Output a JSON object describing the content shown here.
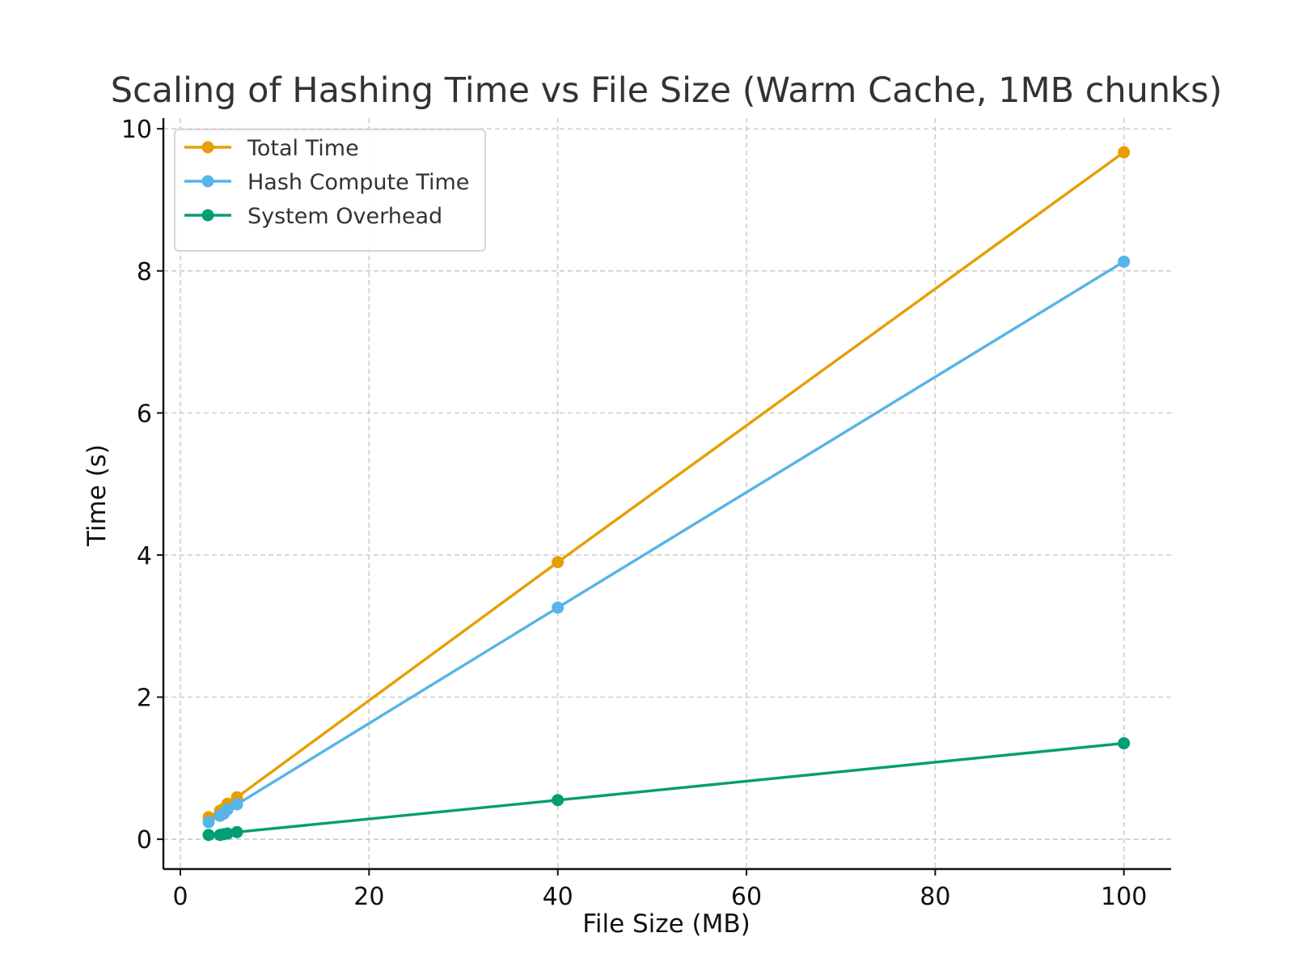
{
  "chart_data": {
    "type": "line",
    "title": "Scaling of Hashing Time vs File Size (Warm Cache, 1MB chunks)",
    "xlabel": "File Size (MB)",
    "ylabel": "Time (s)",
    "xlim": [
      -1.8,
      105
    ],
    "ylim": [
      -0.42,
      10.15
    ],
    "xticks": [
      0,
      20,
      40,
      60,
      80,
      100
    ],
    "yticks": [
      0,
      2,
      4,
      6,
      8,
      10
    ],
    "grid": true,
    "legend_position": "top-left",
    "x": [
      3,
      4.2,
      4.6,
      5,
      6,
      40,
      100
    ],
    "series": [
      {
        "name": "Total Time",
        "color": "#E69F00",
        "values": [
          0.31,
          0.4,
          0.43,
          0.5,
          0.59,
          3.9,
          9.67
        ]
      },
      {
        "name": "Hash Compute Time",
        "color": "#56B4E9",
        "values": [
          0.24,
          0.33,
          0.36,
          0.42,
          0.49,
          3.26,
          8.13
        ]
      },
      {
        "name": "System Overhead",
        "color": "#009E73",
        "values": [
          0.06,
          0.06,
          0.07,
          0.08,
          0.1,
          0.55,
          1.35
        ]
      }
    ]
  }
}
